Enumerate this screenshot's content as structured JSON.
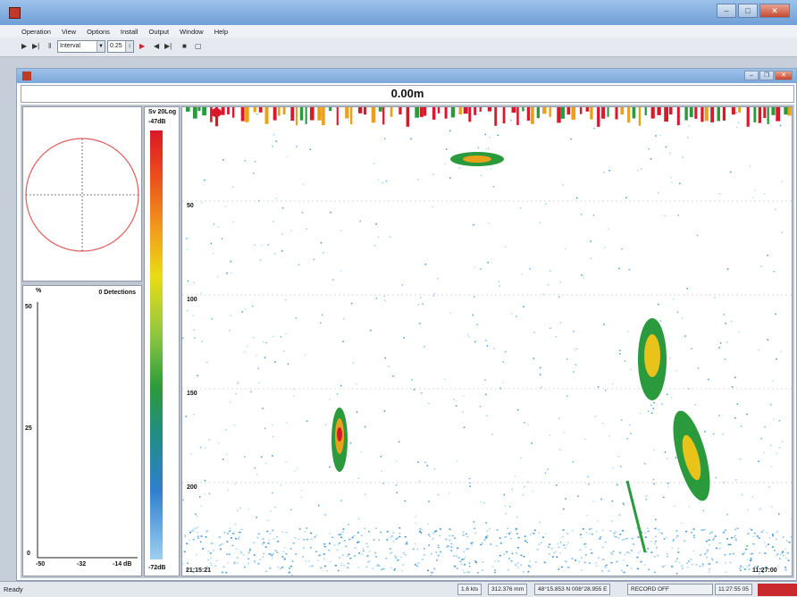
{
  "app": {
    "title": "",
    "menus": [
      "Operation",
      "View",
      "Options",
      "Install",
      "Output",
      "Window",
      "Help"
    ]
  },
  "toolbar": {
    "interval_combo": "Interval",
    "interval_value": "0.25"
  },
  "child": {
    "title": ""
  },
  "echogram": {
    "range_header": "0.00m",
    "depth_labels": [
      "50",
      "100",
      "150",
      "200"
    ],
    "corner_left": "21:15:21",
    "corner_right": "11:27:00"
  },
  "histogram": {
    "title": "0 Detections",
    "y_unit": "%",
    "y_labels": [
      "50",
      "25",
      "0"
    ],
    "x_labels": [
      "-50",
      "-32",
      "-14 dB"
    ]
  },
  "colorbar": {
    "label": "Sv 20Log",
    "max": "-47dB",
    "min": "-72dB",
    "colors": [
      "#d8182a",
      "#f2a11a",
      "#e9dc16",
      "#8dc63f",
      "#2a9a3c",
      "#2f7fd0",
      "#9fcfee"
    ]
  },
  "status": {
    "text": "Ready",
    "cells": [
      "1.6 kts",
      "312.376 mm",
      "48°15.853 N 008°28.955 E",
      "RECORD OFF",
      "11:27:55 05"
    ]
  }
}
